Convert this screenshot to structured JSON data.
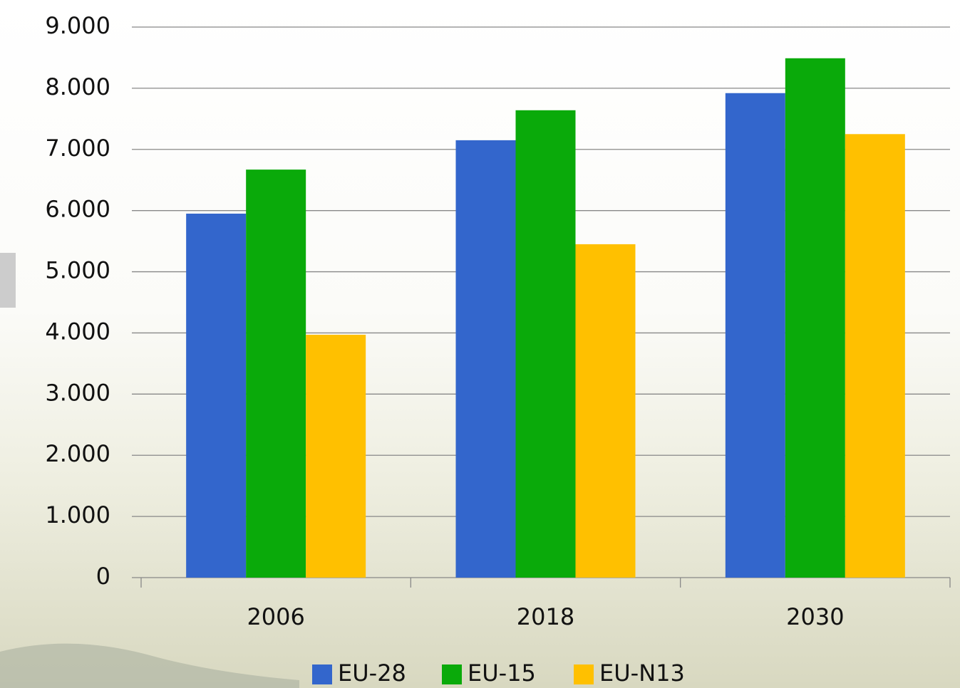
{
  "chart_data": {
    "type": "bar",
    "categories": [
      "2006",
      "2018",
      "2030"
    ],
    "series": [
      {
        "name": "EU-28",
        "color": "#3366cc",
        "values": [
          5950,
          7150,
          7920
        ]
      },
      {
        "name": "EU-15",
        "color": "#0aaa0a",
        "values": [
          6670,
          7640,
          8490
        ]
      },
      {
        "name": "EU-N13",
        "color": "#ffc000",
        "values": [
          3970,
          5450,
          7250
        ]
      }
    ],
    "ylim": [
      0,
      9000
    ],
    "yticks": [
      0,
      {
        "value": 1000,
        "label": "1.000"
      },
      {
        "value": 2000,
        "label": "2.000"
      },
      {
        "value": 3000,
        "label": "3.000"
      },
      {
        "value": 4000,
        "label": "4.000"
      },
      {
        "value": 5000,
        "label": "5.000"
      },
      {
        "value": 6000,
        "label": "6.000"
      },
      {
        "value": 7000,
        "label": "7.000"
      },
      {
        "value": 8000,
        "label": "8.000"
      },
      {
        "value": 9000,
        "label": "9.000"
      }
    ],
    "grid": true
  }
}
